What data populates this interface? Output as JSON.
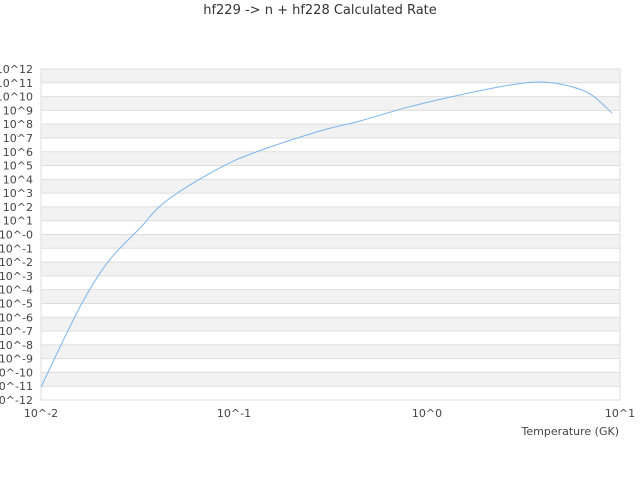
{
  "chart_data": {
    "type": "line",
    "title": "hf229 -> n + hf228 Calculated Rate",
    "xlabel": "Temperature (GK)",
    "ylabel": "",
    "x_scale": "log",
    "y_scale": "log",
    "xlim": [
      0.01,
      10
    ],
    "ylim": [
      1e-12,
      1000000000000.0
    ],
    "x_ticks": [
      "10^-2",
      "10^-1",
      "10^0",
      "10^1"
    ],
    "y_ticks": [
      "10^-12",
      "10^-11",
      "10^-10",
      "10^-9",
      "10^-8",
      "10^-7",
      "10^-6",
      "10^-5",
      "10^-4",
      "10^-3",
      "10^-2",
      "10^-1",
      "10^-0",
      "10^1",
      "10^2",
      "10^3",
      "10^4",
      "10^5",
      "10^6",
      "10^7",
      "10^8",
      "10^9",
      "10^10",
      "10^11",
      "10^12"
    ],
    "grid": "horizontal alternating bands",
    "colors": {
      "line": "#7cb5ec",
      "band": "#f2f2f2",
      "grid": "#dddddd"
    },
    "series": [
      {
        "x": [
          0.01,
          0.0158,
          0.0222,
          0.0326,
          0.0445,
          0.0807,
          0.126,
          0.279,
          0.45,
          0.769,
          1.4,
          2.69,
          3.85,
          5.19,
          7.0,
          9.1
        ],
        "y": [
          8.7e-12,
          4.7e-06,
          0.01,
          2.95,
          269,
          48000.0,
          810000.0,
          32000000.0,
          170000000.0,
          1500000000.0,
          11000000000.0,
          69000000000.0,
          115000000000.0,
          69000000000.0,
          15500000000.0,
          630000000.0
        ]
      }
    ]
  }
}
